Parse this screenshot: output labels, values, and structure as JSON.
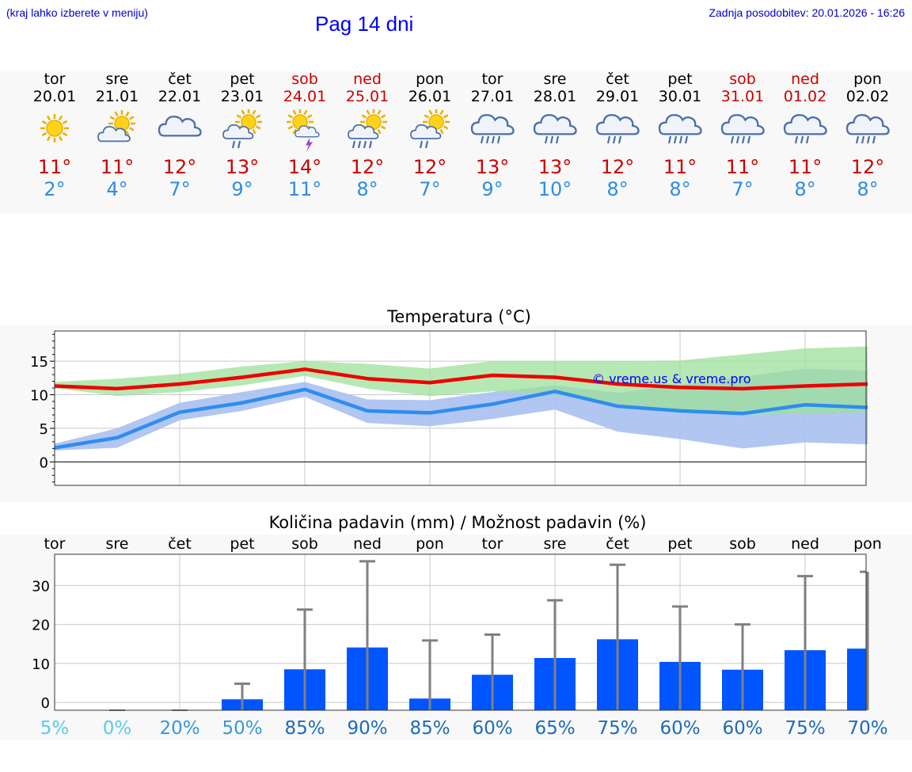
{
  "header": {
    "hint": "(kraj lahko izberete v meniju)",
    "title": "Pag 14 dni",
    "updated": "Zadnja posodobitev: 20.01.2026 - 16:26"
  },
  "days": [
    {
      "name": "tor",
      "date": "20.01",
      "max": "11°",
      "min": "2°",
      "weekend": false,
      "icon": "sun-icon"
    },
    {
      "name": "sre",
      "date": "21.01",
      "max": "11°",
      "min": "4°",
      "weekend": false,
      "icon": "sun-cloud-icon"
    },
    {
      "name": "čet",
      "date": "22.01",
      "max": "12°",
      "min": "7°",
      "weekend": false,
      "icon": "cloud-icon"
    },
    {
      "name": "pet",
      "date": "23.01",
      "max": "13°",
      "min": "9°",
      "weekend": false,
      "icon": "sun-cloud-rain-icon"
    },
    {
      "name": "sob",
      "date": "24.01",
      "max": "14°",
      "min": "11°",
      "weekend": true,
      "icon": "sun-cloud-storm-icon"
    },
    {
      "name": "ned",
      "date": "25.01",
      "max": "12°",
      "min": "8°",
      "weekend": true,
      "icon": "sun-cloud-heavy-rain-icon"
    },
    {
      "name": "pon",
      "date": "26.01",
      "max": "12°",
      "min": "7°",
      "weekend": false,
      "icon": "sun-cloud-rain-icon"
    },
    {
      "name": "tor",
      "date": "27.01",
      "max": "13°",
      "min": "9°",
      "weekend": false,
      "icon": "cloud-heavy-rain-icon"
    },
    {
      "name": "sre",
      "date": "28.01",
      "max": "13°",
      "min": "10°",
      "weekend": false,
      "icon": "cloud-rain-icon"
    },
    {
      "name": "čet",
      "date": "29.01",
      "max": "12°",
      "min": "8°",
      "weekend": false,
      "icon": "cloud-rain-icon"
    },
    {
      "name": "pet",
      "date": "30.01",
      "max": "11°",
      "min": "8°",
      "weekend": false,
      "icon": "cloud-heavy-rain-icon"
    },
    {
      "name": "sob",
      "date": "31.01",
      "max": "11°",
      "min": "7°",
      "weekend": true,
      "icon": "cloud-heavy-rain-icon"
    },
    {
      "name": "ned",
      "date": "01.02",
      "max": "11°",
      "min": "8°",
      "weekend": true,
      "icon": "cloud-rain-icon"
    },
    {
      "name": "pon",
      "date": "02.02",
      "max": "12°",
      "min": "8°",
      "weekend": false,
      "icon": "cloud-heavy-rain-icon"
    }
  ],
  "colors": {
    "max": "#ee0000",
    "min": "#2e8df0",
    "max_band": "#9ee09a",
    "min_band": "#a8c0f0",
    "overlap": "#6ab8a8",
    "bar": "#0055ff",
    "whisker": "#808080",
    "watermark": "#0000ff"
  },
  "chart_data": [
    {
      "type": "line",
      "title": "Temperatura (°C)",
      "ylim": [
        -3.5,
        19.5
      ],
      "yticks": [
        0,
        5,
        10,
        15
      ],
      "watermark": "© vreme.us & vreme.pro",
      "series": [
        {
          "name": "max",
          "values": [
            11.3,
            10.9,
            11.6,
            12.6,
            13.8,
            12.4,
            11.8,
            12.9,
            12.6,
            11.6,
            11.1,
            10.9,
            11.3,
            11.6
          ],
          "low": [
            11.0,
            9.8,
            10.4,
            11.4,
            12.8,
            10.9,
            9.8,
            10.5,
            10.1,
            8.7,
            7.3,
            7.0,
            7.2,
            7.4
          ],
          "high": [
            11.9,
            12.4,
            13.1,
            14.2,
            15.0,
            14.6,
            13.9,
            15.0,
            15.0,
            15.0,
            15.1,
            16.0,
            16.9,
            17.2
          ]
        },
        {
          "name": "min",
          "values": [
            2.1,
            3.6,
            7.4,
            8.8,
            10.8,
            7.6,
            7.3,
            8.6,
            10.5,
            8.3,
            7.6,
            7.2,
            8.5,
            8.1
          ],
          "low": [
            1.7,
            2.1,
            6.2,
            7.6,
            9.7,
            5.8,
            5.3,
            6.4,
            7.8,
            4.5,
            3.4,
            2.0,
            2.9,
            2.6
          ],
          "high": [
            2.7,
            5.0,
            8.8,
            10.4,
            11.9,
            9.3,
            9.2,
            10.4,
            11.4,
            10.3,
            11.5,
            12.7,
            13.9,
            13.6
          ]
        }
      ]
    },
    {
      "type": "bar",
      "title": "Količina padavin (mm) / Možnost padavin (%)",
      "categories": [
        "tor",
        "sre",
        "čet",
        "pet",
        "sob",
        "ned",
        "pon",
        "tor",
        "sre",
        "čet",
        "pet",
        "sob",
        "ned",
        "pon"
      ],
      "ylim": [
        -2,
        38
      ],
      "yticks": [
        0,
        10,
        20,
        30
      ],
      "values": [
        0,
        0,
        0,
        0.8,
        8.5,
        14.1,
        1.0,
        7.1,
        11.4,
        16.2,
        10.4,
        8.4,
        13.4,
        13.8
      ],
      "error_high": [
        0,
        0,
        0,
        4.8,
        23.8,
        36.2,
        15.9,
        17.4,
        26.2,
        35.3,
        24.6,
        20.0,
        32.4,
        33.5
      ],
      "chance": [
        "5%",
        "0%",
        "20%",
        "50%",
        "85%",
        "90%",
        "85%",
        "60%",
        "65%",
        "75%",
        "60%",
        "60%",
        "75%",
        "70%"
      ],
      "chance_colors": [
        "#55ccee",
        "#55ccee",
        "#3399dd",
        "#3399dd",
        "#1c6cb8",
        "#1c6cb8",
        "#1c6cb8",
        "#1c6cb8",
        "#1c6cb8",
        "#1c6cb8",
        "#1c6cb8",
        "#1c6cb8",
        "#1c6cb8",
        "#1c6cb8"
      ]
    }
  ]
}
